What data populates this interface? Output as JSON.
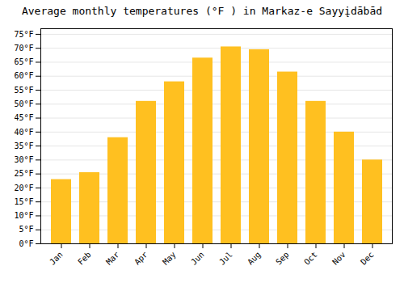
{
  "chart_data": {
    "type": "bar",
    "title": "Average monthly temperatures (°F ) in Markaz-e Sayyįdābād",
    "categories": [
      "Jan",
      "Feb",
      "Mar",
      "Apr",
      "May",
      "Jun",
      "Jul",
      "Aug",
      "Sep",
      "Oct",
      "Nov",
      "Dec"
    ],
    "values": [
      23,
      25.5,
      38,
      51,
      58,
      66.5,
      70.5,
      69.5,
      61.5,
      51,
      40,
      30
    ],
    "color": "#FFC020",
    "ylim": [
      0,
      77
    ],
    "yticks": [
      {
        "value": 0,
        "label": "0°F"
      },
      {
        "value": 5,
        "label": "5°F"
      },
      {
        "value": 10,
        "label": "10°F"
      },
      {
        "value": 15,
        "label": "15°F"
      },
      {
        "value": 20,
        "label": "20°F"
      },
      {
        "value": 25,
        "label": "25°F"
      },
      {
        "value": 30,
        "label": "30°F"
      },
      {
        "value": 35,
        "label": "35°F"
      },
      {
        "value": 40,
        "label": "40°F"
      },
      {
        "value": 45,
        "label": "45°F"
      },
      {
        "value": 50,
        "label": "50°F"
      },
      {
        "value": 55,
        "label": "55°F"
      },
      {
        "value": 60,
        "label": "60°F"
      },
      {
        "value": 65,
        "label": "65°F"
      },
      {
        "value": 70,
        "label": "70°F"
      },
      {
        "value": 75,
        "label": "75°F"
      }
    ],
    "grid": true
  }
}
